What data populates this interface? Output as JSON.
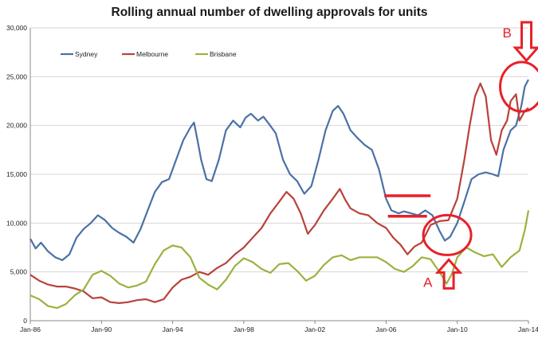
{
  "chart_data": {
    "type": "line",
    "title": "Rolling annual number of dwelling approvals for units",
    "xlabel": "",
    "ylabel": "",
    "x_domain": [
      1986.0,
      2014.0
    ],
    "ylim": [
      0,
      30000
    ],
    "y_ticks": [
      0,
      5000,
      10000,
      15000,
      20000,
      25000,
      30000
    ],
    "y_tick_labels": [
      "0",
      "5,000",
      "10,000",
      "15,000",
      "20,000",
      "25,000",
      "30,000"
    ],
    "x_ticks": [
      1986,
      1990,
      1994,
      1998,
      2002,
      2006,
      2010,
      2014
    ],
    "x_tick_labels": [
      "Jan-86",
      "Jan-90",
      "Jan-94",
      "Jan-98",
      "Jan-02",
      "Jan-06",
      "Jan-10",
      "Jan-14"
    ],
    "grid": true,
    "legend": "top-left",
    "series": [
      {
        "name": "Sydney",
        "color": "#4a71a6",
        "points": [
          [
            1986.0,
            8400
          ],
          [
            1986.3,
            7400
          ],
          [
            1986.6,
            8000
          ],
          [
            1987.0,
            7100
          ],
          [
            1987.4,
            6500
          ],
          [
            1987.8,
            6200
          ],
          [
            1988.2,
            6800
          ],
          [
            1988.6,
            8500
          ],
          [
            1989.0,
            9400
          ],
          [
            1989.4,
            10000
          ],
          [
            1989.8,
            10800
          ],
          [
            1990.2,
            10300
          ],
          [
            1990.6,
            9500
          ],
          [
            1991.0,
            9000
          ],
          [
            1991.4,
            8600
          ],
          [
            1991.8,
            8000
          ],
          [
            1992.2,
            9400
          ],
          [
            1992.6,
            11300
          ],
          [
            1993.0,
            13200
          ],
          [
            1993.4,
            14200
          ],
          [
            1993.8,
            14500
          ],
          [
            1994.2,
            16500
          ],
          [
            1994.6,
            18500
          ],
          [
            1995.0,
            19800
          ],
          [
            1995.2,
            20300
          ],
          [
            1995.4,
            18500
          ],
          [
            1995.6,
            16500
          ],
          [
            1995.9,
            14500
          ],
          [
            1996.2,
            14300
          ],
          [
            1996.6,
            16500
          ],
          [
            1997.0,
            19500
          ],
          [
            1997.4,
            20500
          ],
          [
            1997.8,
            19800
          ],
          [
            1998.1,
            20800
          ],
          [
            1998.4,
            21200
          ],
          [
            1998.8,
            20500
          ],
          [
            1999.1,
            20900
          ],
          [
            1999.4,
            20200
          ],
          [
            1999.8,
            19200
          ],
          [
            2000.2,
            16500
          ],
          [
            2000.6,
            15000
          ],
          [
            2001.0,
            14300
          ],
          [
            2001.4,
            13000
          ],
          [
            2001.8,
            13800
          ],
          [
            2002.2,
            16500
          ],
          [
            2002.6,
            19500
          ],
          [
            2003.0,
            21500
          ],
          [
            2003.3,
            22000
          ],
          [
            2003.6,
            21200
          ],
          [
            2004.0,
            19500
          ],
          [
            2004.4,
            18700
          ],
          [
            2004.8,
            18000
          ],
          [
            2005.2,
            17500
          ],
          [
            2005.6,
            15500
          ],
          [
            2006.0,
            12500
          ],
          [
            2006.3,
            11300
          ],
          [
            2006.7,
            11000
          ],
          [
            2007.0,
            11200
          ],
          [
            2007.4,
            11000
          ],
          [
            2007.8,
            10800
          ],
          [
            2008.2,
            11300
          ],
          [
            2008.6,
            10800
          ],
          [
            2009.0,
            9200
          ],
          [
            2009.3,
            8200
          ],
          [
            2009.6,
            8600
          ],
          [
            2010.0,
            10000
          ],
          [
            2010.4,
            12200
          ],
          [
            2010.8,
            14500
          ],
          [
            2011.2,
            15000
          ],
          [
            2011.6,
            15200
          ],
          [
            2012.0,
            15000
          ],
          [
            2012.3,
            14800
          ],
          [
            2012.6,
            17500
          ],
          [
            2013.0,
            19500
          ],
          [
            2013.3,
            20000
          ],
          [
            2013.6,
            22000
          ],
          [
            2013.8,
            24000
          ],
          [
            2014.0,
            24700
          ]
        ]
      },
      {
        "name": "Melbourne",
        "color": "#b8423b",
        "points": [
          [
            1986.0,
            4700
          ],
          [
            1986.5,
            4100
          ],
          [
            1987.0,
            3700
          ],
          [
            1987.5,
            3500
          ],
          [
            1988.0,
            3500
          ],
          [
            1988.5,
            3300
          ],
          [
            1989.0,
            3000
          ],
          [
            1989.5,
            2300
          ],
          [
            1990.0,
            2400
          ],
          [
            1990.5,
            1900
          ],
          [
            1991.0,
            1800
          ],
          [
            1991.5,
            1900
          ],
          [
            1992.0,
            2100
          ],
          [
            1992.5,
            2200
          ],
          [
            1993.0,
            1900
          ],
          [
            1993.5,
            2200
          ],
          [
            1994.0,
            3400
          ],
          [
            1994.5,
            4200
          ],
          [
            1995.0,
            4500
          ],
          [
            1995.5,
            5000
          ],
          [
            1996.0,
            4700
          ],
          [
            1996.5,
            5400
          ],
          [
            1997.0,
            5900
          ],
          [
            1997.5,
            6800
          ],
          [
            1998.0,
            7500
          ],
          [
            1998.5,
            8500
          ],
          [
            1999.0,
            9500
          ],
          [
            1999.5,
            11000
          ],
          [
            2000.0,
            12200
          ],
          [
            2000.4,
            13200
          ],
          [
            2000.8,
            12500
          ],
          [
            2001.2,
            11000
          ],
          [
            2001.6,
            8900
          ],
          [
            2002.0,
            9800
          ],
          [
            2002.5,
            11300
          ],
          [
            2003.0,
            12500
          ],
          [
            2003.4,
            13500
          ],
          [
            2003.7,
            12400
          ],
          [
            2004.0,
            11500
          ],
          [
            2004.5,
            11000
          ],
          [
            2005.0,
            10800
          ],
          [
            2005.5,
            10000
          ],
          [
            2006.0,
            9500
          ],
          [
            2006.4,
            8500
          ],
          [
            2006.8,
            7800
          ],
          [
            2007.2,
            6800
          ],
          [
            2007.6,
            7600
          ],
          [
            2008.0,
            8000
          ],
          [
            2008.5,
            9800
          ],
          [
            2009.0,
            10200
          ],
          [
            2009.5,
            10300
          ],
          [
            2010.0,
            12500
          ],
          [
            2010.4,
            16500
          ],
          [
            2010.7,
            20000
          ],
          [
            2011.0,
            23000
          ],
          [
            2011.3,
            24300
          ],
          [
            2011.6,
            23000
          ],
          [
            2011.9,
            18500
          ],
          [
            2012.2,
            17000
          ],
          [
            2012.5,
            19500
          ],
          [
            2012.8,
            20500
          ],
          [
            2013.0,
            22500
          ],
          [
            2013.3,
            23200
          ],
          [
            2013.5,
            20500
          ],
          [
            2013.8,
            21500
          ],
          [
            2014.0,
            21800
          ]
        ]
      },
      {
        "name": "Brisbane",
        "color": "#9bb23e",
        "points": [
          [
            1986.0,
            2600
          ],
          [
            1986.5,
            2200
          ],
          [
            1987.0,
            1500
          ],
          [
            1987.5,
            1300
          ],
          [
            1988.0,
            1700
          ],
          [
            1988.5,
            2600
          ],
          [
            1989.0,
            3200
          ],
          [
            1989.5,
            4700
          ],
          [
            1990.0,
            5100
          ],
          [
            1990.5,
            4600
          ],
          [
            1991.0,
            3800
          ],
          [
            1991.5,
            3400
          ],
          [
            1992.0,
            3600
          ],
          [
            1992.5,
            4000
          ],
          [
            1993.0,
            5800
          ],
          [
            1993.5,
            7200
          ],
          [
            1994.0,
            7700
          ],
          [
            1994.5,
            7500
          ],
          [
            1995.0,
            6500
          ],
          [
            1995.5,
            4400
          ],
          [
            1996.0,
            3700
          ],
          [
            1996.5,
            3200
          ],
          [
            1997.0,
            4200
          ],
          [
            1997.5,
            5600
          ],
          [
            1998.0,
            6400
          ],
          [
            1998.5,
            6000
          ],
          [
            1999.0,
            5300
          ],
          [
            1999.5,
            4900
          ],
          [
            2000.0,
            5800
          ],
          [
            2000.5,
            5900
          ],
          [
            2001.0,
            5100
          ],
          [
            2001.5,
            4100
          ],
          [
            2002.0,
            4600
          ],
          [
            2002.5,
            5700
          ],
          [
            2003.0,
            6500
          ],
          [
            2003.5,
            6700
          ],
          [
            2004.0,
            6200
          ],
          [
            2004.5,
            6500
          ],
          [
            2005.0,
            6500
          ],
          [
            2005.5,
            6500
          ],
          [
            2006.0,
            6000
          ],
          [
            2006.5,
            5300
          ],
          [
            2007.0,
            5000
          ],
          [
            2007.5,
            5600
          ],
          [
            2008.0,
            6500
          ],
          [
            2008.5,
            6300
          ],
          [
            2009.0,
            5000
          ],
          [
            2009.4,
            3800
          ],
          [
            2009.7,
            4800
          ],
          [
            2010.0,
            6500
          ],
          [
            2010.5,
            7500
          ],
          [
            2011.0,
            7000
          ],
          [
            2011.5,
            6600
          ],
          [
            2012.0,
            6800
          ],
          [
            2012.5,
            5500
          ],
          [
            2013.0,
            6500
          ],
          [
            2013.5,
            7200
          ],
          [
            2013.8,
            9300
          ],
          [
            2014.0,
            11300
          ]
        ]
      }
    ],
    "annotations": [
      {
        "label": "A",
        "target": [
          2009.3,
          8200
        ],
        "color": "#e8202a"
      },
      {
        "label": "B",
        "target": [
          2013.8,
          23800
        ],
        "color": "#e8202a"
      }
    ]
  }
}
